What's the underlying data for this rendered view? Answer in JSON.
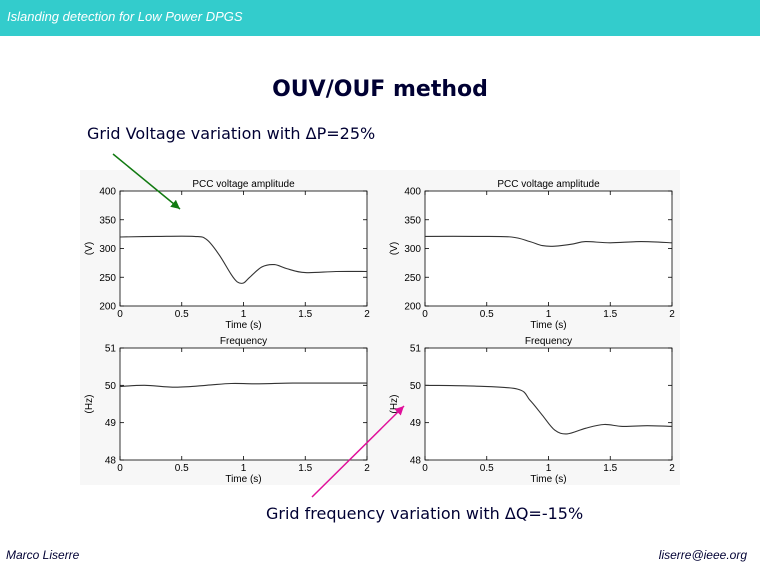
{
  "header": {
    "title": "Islanding detection for Low Power DPGS"
  },
  "slide_title": "OUV/OUF method",
  "captions": {
    "voltage": "Grid Voltage variation with ΔP=25%",
    "frequency": "Grid frequency variation with ΔQ=-15%"
  },
  "footer": {
    "author": "Marco Liserre",
    "email": "liserre@ieee.org"
  },
  "colors": {
    "header_bg": "#33cccc",
    "arrow_voltage": "#117a11",
    "arrow_frequency": "#e0109a"
  },
  "chart_data": [
    {
      "type": "line",
      "title": "PCC voltage amplitude",
      "xlabel": "Time (s)",
      "ylabel": "(V)",
      "xlim": [
        0,
        2
      ],
      "ylim": [
        200,
        400
      ],
      "xticks": [
        "0",
        "0.5",
        "1",
        "1.5",
        "2"
      ],
      "yticks": [
        "200",
        "250",
        "300",
        "350",
        "400"
      ],
      "series": [
        {
          "x": [
            0,
            0.3,
            0.6,
            0.7,
            0.8,
            0.9,
            0.95,
            1.0,
            1.05,
            1.15,
            1.25,
            1.35,
            1.5,
            1.75,
            2.0
          ],
          "y": [
            320,
            321,
            321,
            316,
            290,
            255,
            242,
            240,
            250,
            268,
            272,
            265,
            258,
            260,
            260
          ]
        }
      ]
    },
    {
      "type": "line",
      "title": "PCC voltage amplitude",
      "xlabel": "Time (s)",
      "ylabel": "(V)",
      "xlim": [
        0,
        2
      ],
      "ylim": [
        200,
        400
      ],
      "xticks": [
        "0",
        "0.5",
        "1",
        "1.5",
        "2"
      ],
      "yticks": [
        "200",
        "250",
        "300",
        "350",
        "400"
      ],
      "series": [
        {
          "x": [
            0,
            0.4,
            0.7,
            0.85,
            0.95,
            1.05,
            1.2,
            1.3,
            1.5,
            1.75,
            2.0
          ],
          "y": [
            321,
            321,
            320,
            312,
            305,
            304,
            308,
            312,
            310,
            312,
            310
          ]
        }
      ]
    },
    {
      "type": "line",
      "title": "Frequency",
      "xlabel": "Time (s)",
      "ylabel": "(Hz)",
      "xlim": [
        0,
        2
      ],
      "ylim": [
        48,
        51
      ],
      "xticks": [
        "0",
        "0.5",
        "1",
        "1.5",
        "2"
      ],
      "yticks": [
        "48",
        "49",
        "50",
        "51"
      ],
      "series": [
        {
          "x": [
            0,
            0.2,
            0.45,
            0.7,
            0.9,
            1.1,
            1.4,
            1.7,
            2.0
          ],
          "y": [
            49.97,
            50.0,
            49.95,
            50.0,
            50.05,
            50.04,
            50.06,
            50.06,
            50.06
          ]
        }
      ]
    },
    {
      "type": "line",
      "title": "Frequency",
      "xlabel": "Time (s)",
      "ylabel": "(Hz)",
      "xlim": [
        0,
        2
      ],
      "ylim": [
        48,
        51
      ],
      "xticks": [
        "0",
        "0.5",
        "1",
        "1.5",
        "2"
      ],
      "yticks": [
        "48",
        "49",
        "50",
        "51"
      ],
      "series": [
        {
          "x": [
            0,
            0.4,
            0.75,
            0.85,
            0.95,
            1.05,
            1.15,
            1.3,
            1.45,
            1.6,
            1.8,
            2.0
          ],
          "y": [
            50.0,
            49.98,
            49.9,
            49.6,
            49.2,
            48.8,
            48.7,
            48.85,
            48.95,
            48.9,
            48.92,
            48.9
          ]
        }
      ]
    }
  ]
}
